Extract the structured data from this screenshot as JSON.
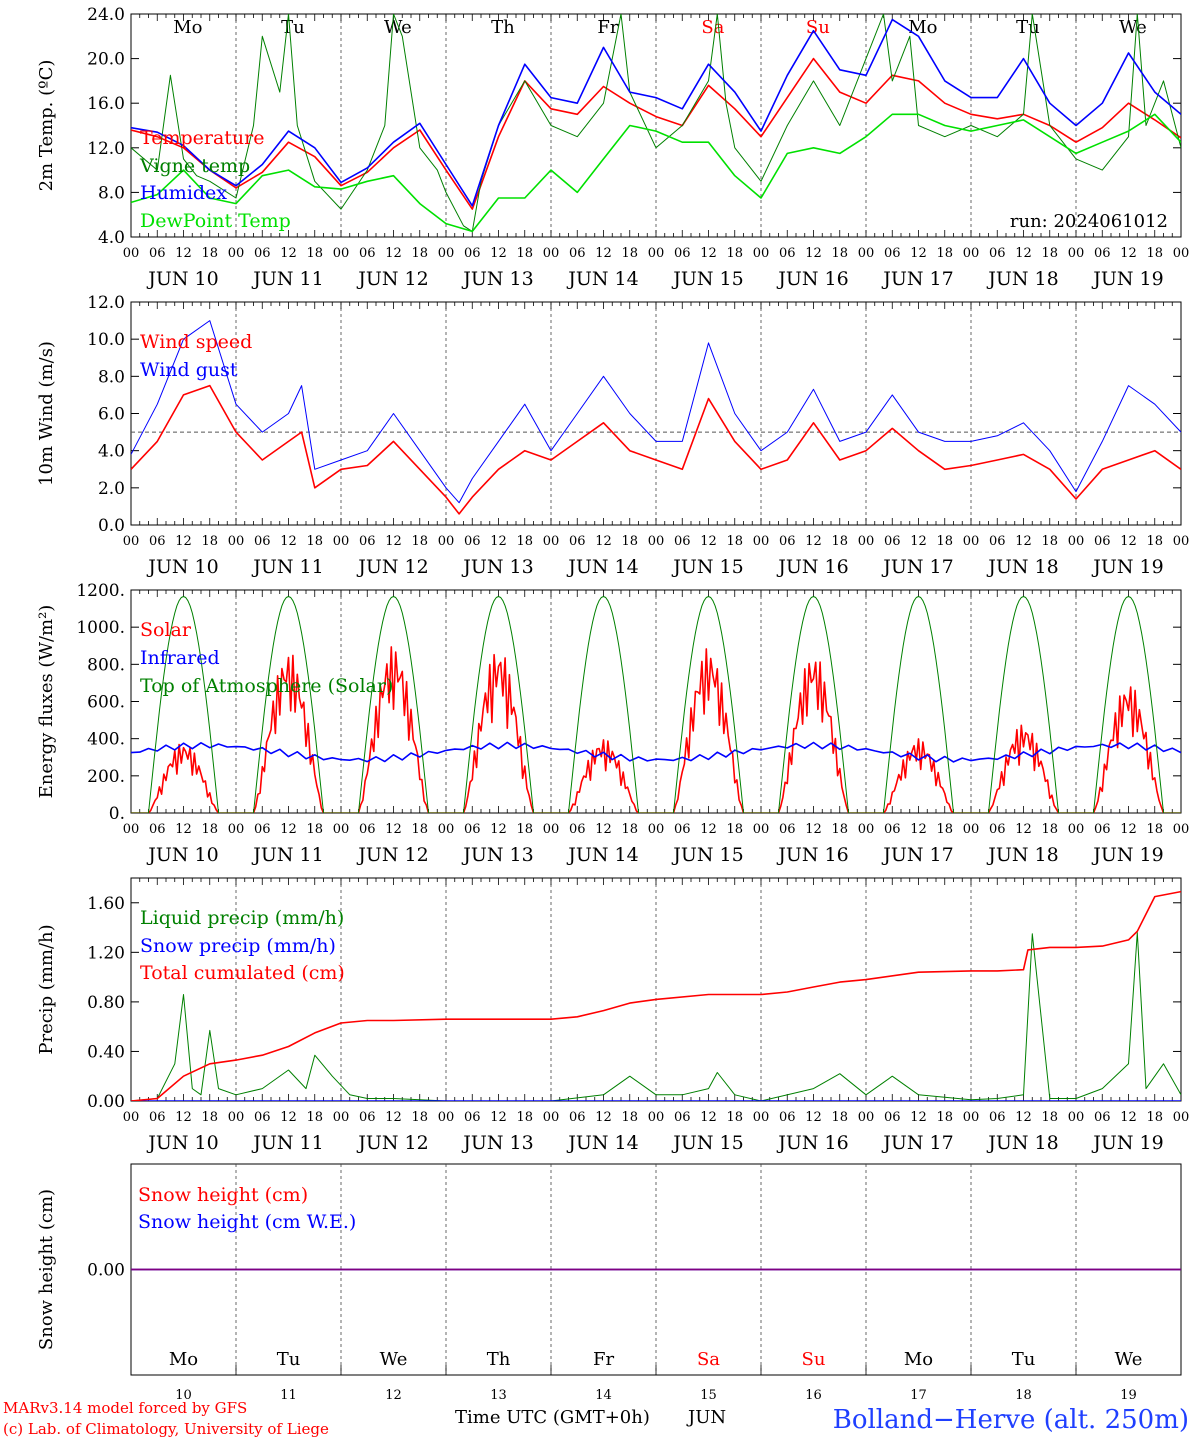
{
  "colors": {
    "red": "#ff0000",
    "green": "#008000",
    "blue": "#0000ff",
    "lightgreen": "#00e000",
    "purple": "#800080",
    "black": "#000000"
  },
  "days_top": [
    {
      "label": "Mo",
      "color": "#000000"
    },
    {
      "label": "Tu",
      "color": "#000000"
    },
    {
      "label": "We",
      "color": "#000000"
    },
    {
      "label": "Th",
      "color": "#000000"
    },
    {
      "label": "Fr",
      "color": "#000000"
    },
    {
      "label": "Sa",
      "color": "#ff0000"
    },
    {
      "label": "Su",
      "color": "#ff0000"
    },
    {
      "label": "Mo",
      "color": "#000000"
    },
    {
      "label": "Tu",
      "color": "#000000"
    },
    {
      "label": "We",
      "color": "#000000"
    }
  ],
  "date_labels": [
    "JUN 10",
    "JUN 11",
    "JUN 12",
    "JUN 13",
    "JUN 14",
    "JUN 15",
    "JUN 16",
    "JUN 17",
    "JUN 18",
    "JUN 19"
  ],
  "hour_ticks": [
    "00",
    "06",
    "12",
    "18"
  ],
  "hour_end": "00",
  "bottom_day_numbers": [
    "10",
    "11",
    "12",
    "13",
    "14",
    "15",
    "16",
    "17",
    "18",
    "19"
  ],
  "footer": {
    "credit_line1": "MARv3.14 model forced by GFS",
    "credit_line2": "(c) Lab. of Climatology, University of Liege",
    "time_label": "Time UTC (GMT+0h)",
    "month_label": "JUN",
    "station": "Bolland−Herve (alt. 250m)"
  },
  "chart_data": [
    {
      "type": "line",
      "ylabel": "2m Temp. (ºC)",
      "ylim": [
        4,
        24
      ],
      "yticks": [
        "4.0",
        "8.0",
        "12.0",
        "16.0",
        "20.0",
        "24.0"
      ],
      "run_label": "run: 2024061012",
      "x_unit": "hours since 2024-06-10 00 UTC",
      "series": [
        {
          "name": "Temperature",
          "color": "#ff0000",
          "x": [
            0,
            6,
            12,
            18,
            24,
            30,
            36,
            42,
            48,
            54,
            60,
            66,
            72,
            78,
            84,
            90,
            96,
            102,
            108,
            114,
            120,
            126,
            132,
            138,
            144,
            150,
            156,
            162,
            168,
            174,
            180,
            186,
            192,
            198,
            204,
            210,
            216,
            222,
            228,
            234,
            240
          ],
          "values": [
            13.6,
            13.0,
            12.0,
            10.0,
            8.4,
            9.8,
            12.5,
            11.2,
            8.6,
            9.8,
            12.0,
            13.6,
            10.0,
            6.5,
            13.0,
            18.0,
            15.5,
            15.0,
            17.5,
            16.0,
            14.8,
            14.0,
            17.6,
            15.5,
            13.0,
            16.5,
            20.0,
            17.0,
            16.0,
            18.5,
            18.0,
            16.0,
            15.0,
            14.6,
            15.0,
            14.0,
            12.5,
            13.8,
            16.0,
            14.5,
            12.9
          ]
        },
        {
          "name": "Vigne temp",
          "color": "#008000",
          "x": [
            0,
            6,
            9,
            12,
            15,
            18,
            24,
            28,
            30,
            34,
            36,
            38,
            42,
            48,
            54,
            58,
            60,
            62,
            66,
            70,
            72,
            76,
            78,
            80,
            84,
            90,
            96,
            102,
            108,
            112,
            114,
            120,
            126,
            132,
            134,
            136,
            138,
            144,
            150,
            156,
            162,
            168,
            172,
            174,
            178,
            180,
            186,
            192,
            198,
            204,
            206,
            210,
            216,
            222,
            228,
            230,
            232,
            236,
            240
          ],
          "values": [
            12.0,
            10.0,
            18.5,
            11.0,
            9.5,
            9.0,
            7.5,
            14.0,
            22.0,
            17.0,
            24.0,
            14.0,
            9.0,
            6.5,
            10.0,
            14.0,
            24.0,
            22.0,
            12.0,
            10.0,
            8.0,
            5.0,
            4.5,
            9.0,
            14.0,
            18.0,
            14.0,
            13.0,
            16.0,
            24.0,
            17.0,
            12.0,
            14.0,
            18.0,
            24.0,
            16.0,
            12.0,
            9.0,
            14.0,
            18.0,
            14.0,
            20.0,
            24.0,
            18.0,
            22.0,
            14.0,
            13.0,
            14.0,
            13.0,
            15.0,
            24.0,
            14.0,
            11.0,
            10.0,
            13.0,
            24.0,
            14.0,
            18.0,
            12.0
          ]
        },
        {
          "name": "Humidex",
          "color": "#0000ff",
          "x": [
            0,
            6,
            12,
            18,
            24,
            30,
            36,
            42,
            48,
            54,
            60,
            66,
            72,
            78,
            84,
            90,
            96,
            102,
            108,
            114,
            120,
            126,
            132,
            138,
            144,
            150,
            156,
            162,
            168,
            174,
            180,
            186,
            192,
            198,
            204,
            210,
            216,
            222,
            228,
            234,
            240
          ],
          "values": [
            13.8,
            13.4,
            12.2,
            10.0,
            8.6,
            10.5,
            13.5,
            12.0,
            8.9,
            10.2,
            12.5,
            14.2,
            10.5,
            6.8,
            14.0,
            19.5,
            16.5,
            16.0,
            21.0,
            17.0,
            16.5,
            15.5,
            19.5,
            17.0,
            13.5,
            18.5,
            22.5,
            19.0,
            18.5,
            23.5,
            22.0,
            18.0,
            16.5,
            16.5,
            20.0,
            16.0,
            14.0,
            16.0,
            20.5,
            17.0,
            15.0
          ]
        },
        {
          "name": "DewPoint Temp",
          "color": "#00e000",
          "x": [
            0,
            6,
            12,
            18,
            24,
            30,
            36,
            42,
            48,
            54,
            60,
            66,
            72,
            78,
            84,
            90,
            96,
            102,
            108,
            114,
            120,
            126,
            132,
            138,
            144,
            150,
            156,
            162,
            168,
            174,
            180,
            186,
            192,
            198,
            204,
            210,
            216,
            222,
            228,
            234,
            240
          ],
          "values": [
            7.1,
            7.8,
            10.0,
            7.5,
            7.0,
            9.5,
            10.0,
            8.5,
            8.3,
            9.0,
            9.5,
            7.0,
            5.2,
            4.5,
            7.5,
            7.5,
            10.0,
            8.0,
            11.0,
            14.0,
            13.5,
            12.5,
            12.5,
            9.5,
            7.5,
            11.5,
            12.0,
            11.5,
            13.0,
            15.0,
            15.0,
            14.0,
            13.5,
            14.0,
            14.5,
            13.0,
            11.5,
            12.5,
            13.5,
            15.0,
            12.5
          ]
        }
      ]
    },
    {
      "type": "line",
      "ylabel": "10m Wind (m/s)",
      "ylim": [
        0,
        12
      ],
      "yticks": [
        "0.0",
        "2.0",
        "4.0",
        "6.0",
        "8.0",
        "10.0",
        "12.0"
      ],
      "reference_line": 5.0,
      "x_unit": "hours since 2024-06-10 00 UTC",
      "series": [
        {
          "name": "Wind speed",
          "color": "#ff0000",
          "x": [
            0,
            6,
            12,
            18,
            24,
            30,
            36,
            39,
            42,
            48,
            54,
            60,
            66,
            72,
            75,
            78,
            84,
            90,
            96,
            102,
            108,
            114,
            120,
            126,
            132,
            138,
            144,
            150,
            156,
            162,
            168,
            174,
            180,
            186,
            192,
            198,
            204,
            210,
            216,
            222,
            228,
            234,
            240
          ],
          "values": [
            3.0,
            4.5,
            7.0,
            7.5,
            5.0,
            3.5,
            4.5,
            5.0,
            2.0,
            3.0,
            3.2,
            4.5,
            3.0,
            1.5,
            0.6,
            1.5,
            3.0,
            4.0,
            3.5,
            4.5,
            5.5,
            4.0,
            3.5,
            3.0,
            6.8,
            4.5,
            3.0,
            3.5,
            5.5,
            3.5,
            4.0,
            5.2,
            4.0,
            3.0,
            3.2,
            3.5,
            3.8,
            3.0,
            1.4,
            3.0,
            3.5,
            4.0,
            3.0
          ]
        },
        {
          "name": "Wind gust",
          "color": "#0000ff",
          "x": [
            0,
            6,
            12,
            18,
            24,
            30,
            36,
            39,
            42,
            48,
            54,
            60,
            66,
            72,
            75,
            78,
            84,
            90,
            96,
            102,
            108,
            114,
            120,
            126,
            132,
            138,
            144,
            150,
            156,
            162,
            168,
            174,
            180,
            186,
            192,
            198,
            204,
            210,
            216,
            222,
            228,
            234,
            240
          ],
          "values": [
            3.8,
            6.5,
            10.0,
            11.0,
            6.5,
            5.0,
            6.0,
            7.5,
            3.0,
            3.5,
            4.0,
            6.0,
            4.0,
            2.0,
            1.2,
            2.5,
            4.5,
            6.5,
            4.0,
            6.0,
            8.0,
            6.0,
            4.5,
            4.5,
            9.8,
            6.0,
            4.0,
            5.0,
            7.3,
            4.5,
            5.0,
            7.0,
            5.0,
            4.5,
            4.5,
            4.8,
            5.5,
            4.0,
            1.8,
            4.5,
            7.5,
            6.5,
            5.0
          ]
        }
      ]
    },
    {
      "type": "line",
      "ylabel": "Energy fluxes (W/m²)",
      "ylim": [
        0,
        1200
      ],
      "yticks": [
        "0.",
        "200.",
        "400.",
        "600.",
        "800.",
        "1000.",
        "1200."
      ],
      "x_unit": "hours since 2024-06-10 00 UTC",
      "series": [
        {
          "name": "Solar",
          "color": "#ff0000",
          "day_peaks": [
            380,
            870,
            900,
            890,
            400,
            890,
            860,
            400,
            480,
            700
          ]
        },
        {
          "name": "Infrared",
          "color": "#0000ff",
          "values_range": [
            270,
            380
          ]
        },
        {
          "name": "Top of Atmosphere (Solar)",
          "color": "#008000",
          "day_peaks": [
            1165,
            1165,
            1165,
            1165,
            1165,
            1165,
            1165,
            1165,
            1165,
            1165
          ]
        }
      ]
    },
    {
      "type": "line",
      "ylabel": "Precip (mm/h)",
      "ylim": [
        0,
        1.8
      ],
      "yticks": [
        "0.00",
        "0.40",
        "0.80",
        "1.20",
        "1.60"
      ],
      "x_unit": "hours since 2024-06-10 00 UTC",
      "series": [
        {
          "name": "Liquid precip (mm/h)",
          "color": "#008000",
          "x": [
            0,
            6,
            10,
            12,
            14,
            16,
            18,
            20,
            24,
            30,
            36,
            40,
            42,
            46,
            50,
            54,
            60,
            66,
            72,
            96,
            108,
            114,
            120,
            126,
            132,
            134,
            138,
            144,
            156,
            162,
            168,
            174,
            180,
            192,
            198,
            204,
            206,
            210,
            216,
            222,
            228,
            230,
            232,
            236,
            240
          ],
          "values": [
            0,
            0.02,
            0.3,
            0.86,
            0.1,
            0.05,
            0.57,
            0.1,
            0.05,
            0.1,
            0.25,
            0.1,
            0.37,
            0.2,
            0.05,
            0.02,
            0.02,
            0.01,
            0,
            0,
            0.05,
            0.2,
            0.05,
            0.05,
            0.1,
            0.23,
            0.05,
            0,
            0.1,
            0.22,
            0.05,
            0.2,
            0.05,
            0.01,
            0.02,
            0.05,
            1.35,
            0.02,
            0.02,
            0.1,
            0.3,
            1.36,
            0.1,
            0.3,
            0.05
          ]
        },
        {
          "name": "Snow precip (mm/h)",
          "color": "#0000ff",
          "x": [
            0,
            240
          ],
          "values": [
            0,
            0
          ]
        },
        {
          "name": "Total cumulated (cm)",
          "color": "#ff0000",
          "x": [
            0,
            6,
            12,
            18,
            24,
            30,
            36,
            42,
            48,
            54,
            60,
            72,
            96,
            102,
            108,
            114,
            120,
            132,
            144,
            150,
            156,
            162,
            168,
            180,
            192,
            198,
            204,
            205,
            210,
            216,
            222,
            228,
            230,
            234,
            240
          ],
          "values": [
            0,
            0.02,
            0.2,
            0.3,
            0.33,
            0.37,
            0.44,
            0.55,
            0.63,
            0.65,
            0.65,
            0.66,
            0.66,
            0.68,
            0.73,
            0.79,
            0.82,
            0.86,
            0.86,
            0.88,
            0.92,
            0.96,
            0.98,
            1.04,
            1.05,
            1.05,
            1.06,
            1.22,
            1.24,
            1.24,
            1.25,
            1.3,
            1.37,
            1.65,
            1.69
          ]
        }
      ]
    },
    {
      "type": "line",
      "ylabel": "Snow height (cm)",
      "ylim": [
        -1,
        1
      ],
      "yticks": [
        "0.00"
      ],
      "x_unit": "hours since 2024-06-10 00 UTC",
      "series": [
        {
          "name": "Snow height (cm)",
          "color": "#ff0000",
          "x": [
            0,
            240
          ],
          "values": [
            0,
            0
          ]
        },
        {
          "name": "Snow height (cm W.E.)",
          "color": "#0000ff",
          "x": [
            0,
            240
          ],
          "values": [
            0,
            0
          ]
        }
      ]
    }
  ]
}
